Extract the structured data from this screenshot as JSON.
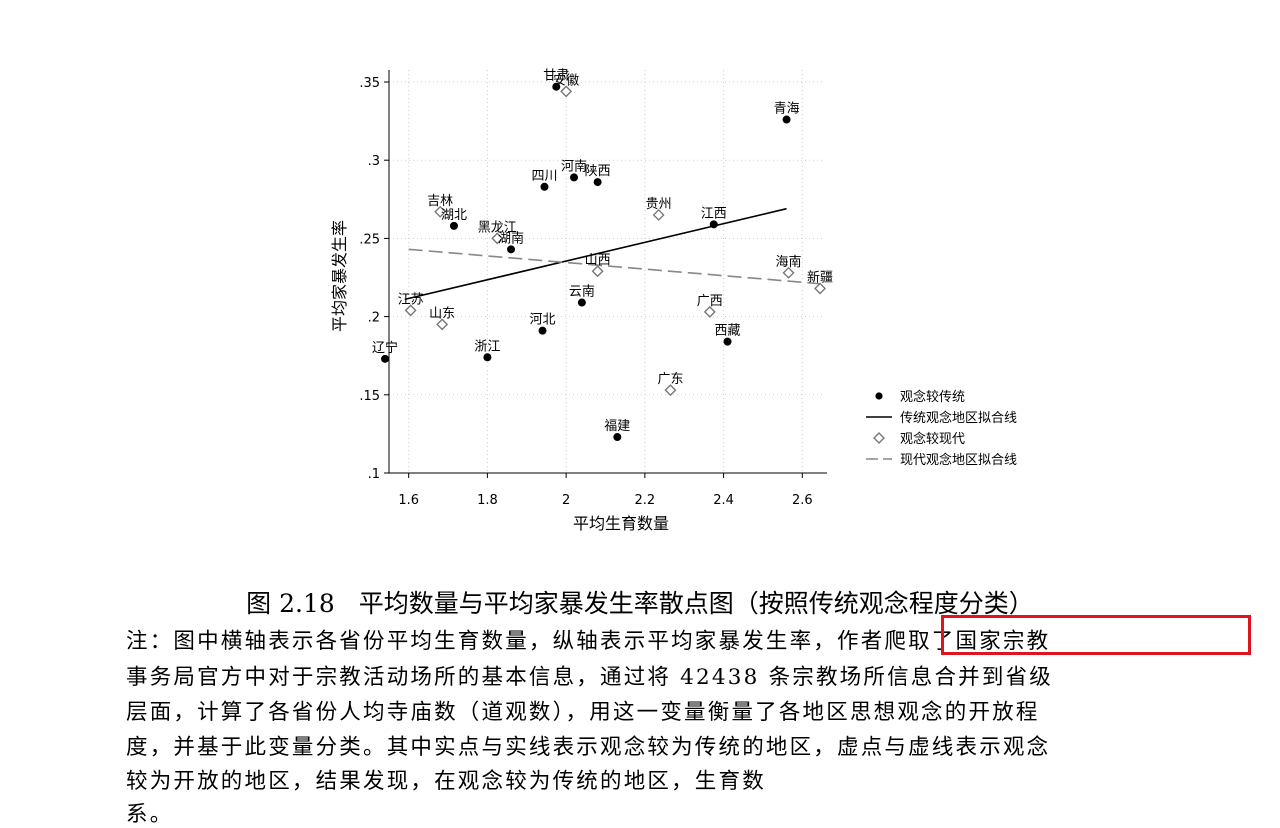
{
  "chart_data": {
    "type": "scatter",
    "xlabel": "平均生育数量",
    "ylabel": "平均家暴发生率",
    "xlim": [
      1.55,
      2.65
    ],
    "ylim": [
      0.1,
      0.35
    ],
    "x_ticks": [
      {
        "value": 1.6,
        "label": "1.6"
      },
      {
        "value": 1.8,
        "label": "1.8"
      },
      {
        "value": 2.0,
        "label": "2"
      },
      {
        "value": 2.2,
        "label": "2.2"
      },
      {
        "value": 2.4,
        "label": "2.4"
      },
      {
        "value": 2.6,
        "label": "2.6"
      }
    ],
    "y_ticks": [
      {
        "value": 0.1,
        "label": ".1"
      },
      {
        "value": 0.15,
        "label": ".15"
      },
      {
        "value": 0.2,
        "label": ".2"
      },
      {
        "value": 0.25,
        "label": ".25"
      },
      {
        "value": 0.3,
        "label": ".3"
      },
      {
        "value": 0.35,
        "label": ".35"
      }
    ],
    "grid": true,
    "legend_position": "bottom-right",
    "series": [
      {
        "name": "观念较传统",
        "marker": "filled-circle",
        "color": "#000000",
        "points": [
          {
            "label": "甘肃",
            "x": 1.975,
            "y": 0.347
          },
          {
            "label": "青海",
            "x": 2.56,
            "y": 0.326
          },
          {
            "label": "河南",
            "x": 2.02,
            "y": 0.289
          },
          {
            "label": "陕西",
            "x": 2.08,
            "y": 0.286
          },
          {
            "label": "四川",
            "x": 1.945,
            "y": 0.283
          },
          {
            "label": "湖北",
            "x": 1.715,
            "y": 0.258
          },
          {
            "label": "江西",
            "x": 2.375,
            "y": 0.259
          },
          {
            "label": "湖南",
            "x": 1.86,
            "y": 0.243
          },
          {
            "label": "云南",
            "x": 2.04,
            "y": 0.209
          },
          {
            "label": "河北",
            "x": 1.94,
            "y": 0.191
          },
          {
            "label": "西藏",
            "x": 2.41,
            "y": 0.184
          },
          {
            "label": "辽宁",
            "x": 1.54,
            "y": 0.173
          },
          {
            "label": "浙江",
            "x": 1.8,
            "y": 0.174
          },
          {
            "label": "福建",
            "x": 2.13,
            "y": 0.123
          }
        ]
      },
      {
        "name": "观念较现代",
        "marker": "hollow-diamond",
        "color": "#777777",
        "points": [
          {
            "label": "安徽",
            "x": 2.0,
            "y": 0.344
          },
          {
            "label": "贵州",
            "x": 2.235,
            "y": 0.265
          },
          {
            "label": "吉林",
            "x": 1.68,
            "y": 0.267
          },
          {
            "label": "黑龙江",
            "x": 1.825,
            "y": 0.25
          },
          {
            "label": "山西",
            "x": 2.08,
            "y": 0.229
          },
          {
            "label": "海南",
            "x": 2.565,
            "y": 0.228
          },
          {
            "label": "新疆",
            "x": 2.645,
            "y": 0.218
          },
          {
            "label": "江苏",
            "x": 1.605,
            "y": 0.204
          },
          {
            "label": "山东",
            "x": 1.685,
            "y": 0.195
          },
          {
            "label": "广西",
            "x": 2.365,
            "y": 0.203
          },
          {
            "label": "广东",
            "x": 2.265,
            "y": 0.153
          }
        ]
      }
    ],
    "fit_lines": [
      {
        "name": "传统观念地区拟合线",
        "style": "solid",
        "color": "#000000",
        "from": [
          1.59,
          0.211
        ],
        "to": [
          2.56,
          0.269
        ]
      },
      {
        "name": "现代观念地区拟合线",
        "style": "dashed",
        "color": "#888888",
        "from": [
          1.6,
          0.243
        ],
        "to": [
          2.645,
          0.221
        ]
      }
    ]
  },
  "caption": {
    "number": "图 2.18",
    "title": "平均数量与平均家暴发生率散点图（按照传统观念程度分类）"
  },
  "note": {
    "lines": [
      "注：图中横轴表示各省份平均生育数量，纵轴表示平均家暴发生率，作者爬取了国家宗教",
      "事务局官方中对于宗教活动场所的基本信息，通过将 42438 条宗教场所信息合并到省级",
      "层面，计算了各省份人均寺庙数（道观数），用这一变量衡量了各地区思想观念的开放程",
      "度，并基于此变量分类。其中实点与实线表示观念较为传统的地区，虚点与虚线表示观念",
      "较为开放的地区，结果发现，在观念较为传统的地区，生育数",
      "系。"
    ]
  },
  "highlight_color": "#e0141e"
}
